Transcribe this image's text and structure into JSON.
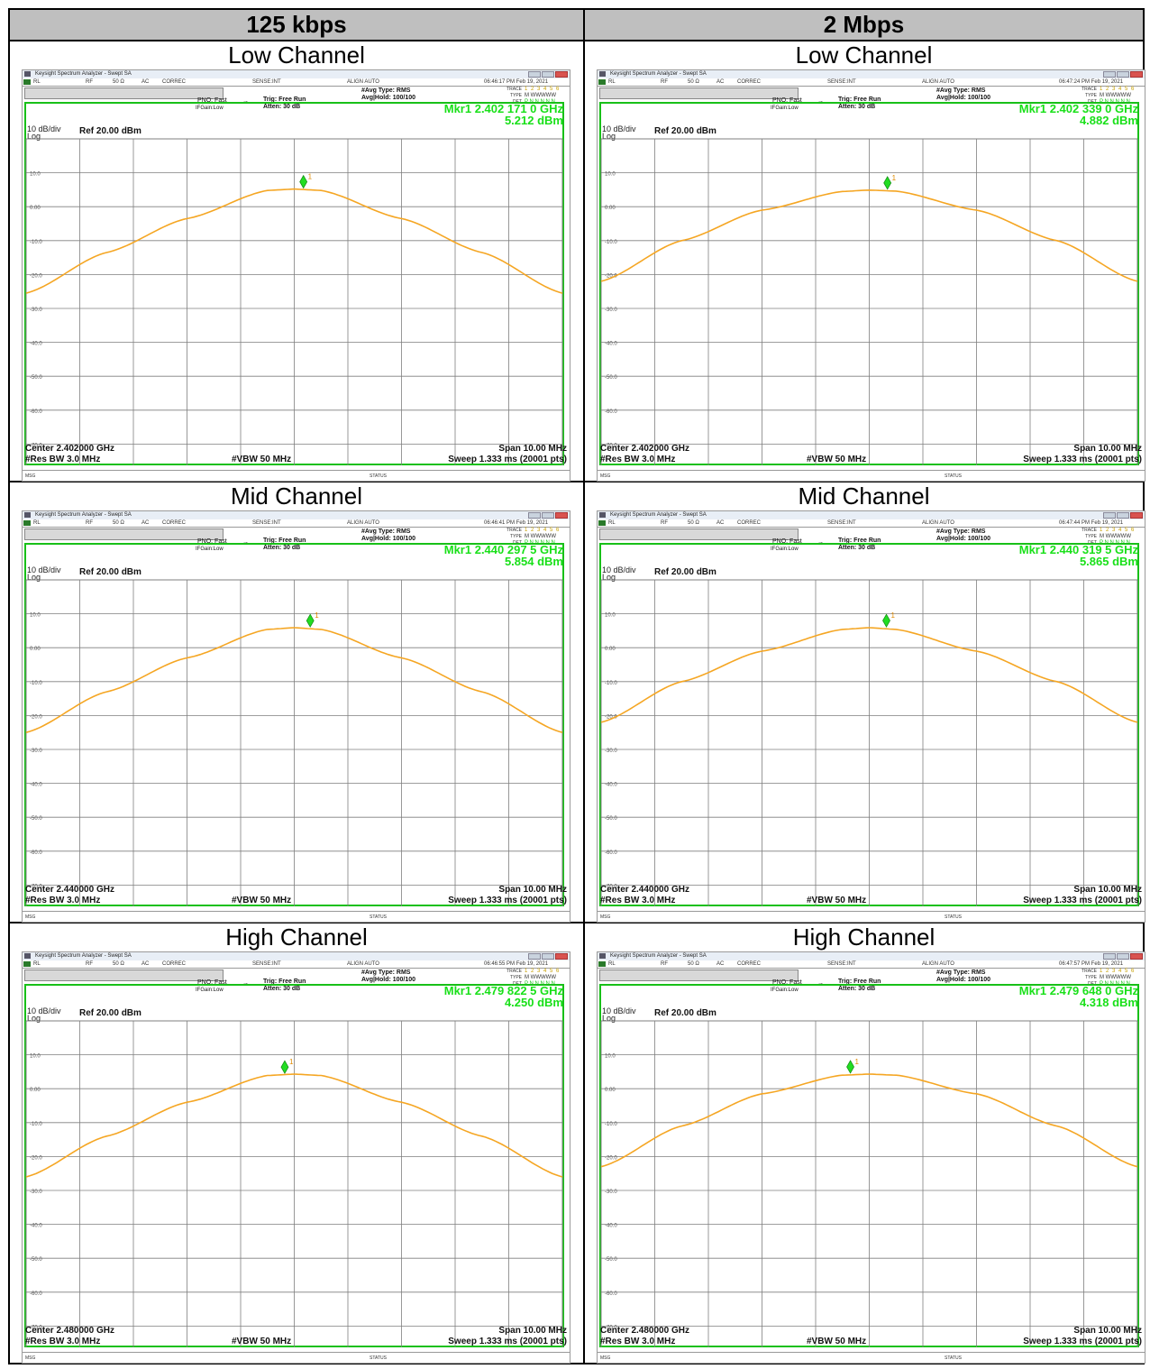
{
  "columns": [
    "125 kbps",
    "2 Mbps"
  ],
  "app_title": "Keysight Spectrum Analyzer - Swept SA",
  "status_row": {
    "rl": "RL",
    "rf": "RF",
    "ohm": "50 Ω",
    "ac": "AC",
    "correc": "CORREC",
    "sense": "SENSE:INT",
    "align": "ALIGN AUTO"
  },
  "settings": {
    "pno": "PNO: Fast",
    "ifgain": "IFGain:Low",
    "trig": "Trig: Free Run",
    "atten": "Atten: 30 dB",
    "avg_type": "#Avg Type: RMS",
    "avg_hold": "Avg|Hold: 100/100",
    "trace_lbl": "TRACE",
    "type_lbl": "TYPE",
    "det_lbl": "DET",
    "trace_val": "1 2 3 4 5 6",
    "type_val": "M WWWWW",
    "det_val": "P N N N N N"
  },
  "scale": {
    "div": "10 dB/div",
    "log": "Log",
    "ref": "Ref 20.00 dBm"
  },
  "bottom": {
    "res_bw": "#Res BW 3.0 MHz",
    "vbw": "#VBW 50 MHz",
    "span": "Span 10.00 MHz",
    "sweep": "Sweep  1.333 ms (20001 pts)",
    "msg": "MSG",
    "status": "STATUS"
  },
  "marker_label": "1",
  "colors": {
    "trace": "#f5a623",
    "marker": "#22dd22",
    "frame": "#18c018",
    "header_bg": "#bfbfbf"
  },
  "panels": [
    {
      "channel": "Low Channel",
      "time": "06:46:17 PM Feb 19, 2021",
      "mkr_freq": "Mkr1 2.402 171 0 GHz",
      "mkr_level": "5.212 dBm",
      "center": "Center 2.402000 GHz"
    },
    {
      "channel": "Low Channel",
      "time": "06:47:24 PM Feb 19, 2021",
      "mkr_freq": "Mkr1 2.402 339 0 GHz",
      "mkr_level": "4.882 dBm",
      "center": "Center 2.402000 GHz"
    },
    {
      "channel": "Mid Channel",
      "time": "06:46:41 PM Feb 19, 2021",
      "mkr_freq": "Mkr1 2.440 297 5 GHz",
      "mkr_level": "5.854 dBm",
      "center": "Center 2.440000 GHz"
    },
    {
      "channel": "Mid Channel",
      "time": "06:47:44 PM Feb 19, 2021",
      "mkr_freq": "Mkr1 2.440 319 5 GHz",
      "mkr_level": "5.865 dBm",
      "center": "Center 2.440000 GHz"
    },
    {
      "channel": "High Channel",
      "time": "06:46:55 PM Feb 19, 2021",
      "mkr_freq": "Mkr1 2.479 822 5 GHz",
      "mkr_level": "4.250 dBm",
      "center": "Center 2.480000 GHz"
    },
    {
      "channel": "High Channel",
      "time": "06:47:57 PM Feb 19, 2021",
      "mkr_freq": "Mkr1 2.479 648 0 GHz",
      "mkr_level": "4.318 dBm",
      "center": "Center 2.480000 GHz"
    }
  ],
  "chart_data": [
    {
      "type": "line",
      "title": "125 kbps Low Channel",
      "y_ticks": [
        "10.0",
        "0.00",
        "-10.0",
        "-20.0",
        "-30.0",
        "-40.0",
        "-50.0",
        "-60.0",
        "-70.0"
      ],
      "ylim": [
        -80,
        20
      ],
      "xlim": [
        2.397,
        2.407
      ],
      "x_unit": "GHz",
      "y_unit": "dBm",
      "grid": true,
      "center": 2.402,
      "span": 0.01,
      "marker": {
        "x": 2.402171,
        "y": 5.212
      },
      "series": [
        {
          "x": [
            2.397,
            2.3985,
            2.4,
            2.4015,
            2.402,
            2.4025,
            2.404,
            2.4055,
            2.407
          ],
          "y": [
            -25.5,
            -13.5,
            -3.5,
            4.8,
            5.2,
            4.8,
            -3.5,
            -13.5,
            -25.5
          ]
        }
      ]
    },
    {
      "type": "line",
      "title": "2 Mbps Low Channel",
      "y_ticks": [
        "10.0",
        "0.00",
        "-10.0",
        "-20.0",
        "-30.0",
        "-40.0",
        "-50.0",
        "-60.0",
        "-70.0"
      ],
      "ylim": [
        -80,
        20
      ],
      "xlim": [
        2.397,
        2.407
      ],
      "x_unit": "GHz",
      "y_unit": "dBm",
      "grid": true,
      "center": 2.402,
      "span": 0.01,
      "marker": {
        "x": 2.402339,
        "y": 4.882
      },
      "series": [
        {
          "x": [
            2.397,
            2.3985,
            2.4,
            2.4015,
            2.402,
            2.4025,
            2.404,
            2.4055,
            2.407
          ],
          "y": [
            -22.0,
            -10.0,
            -1.0,
            4.5,
            4.9,
            4.6,
            -1.0,
            -10.0,
            -22.0
          ]
        }
      ]
    },
    {
      "type": "line",
      "title": "125 kbps Mid Channel",
      "y_ticks": [
        "10.0",
        "0.00",
        "-10.0",
        "-20.0",
        "-30.0",
        "-40.0",
        "-50.0",
        "-60.0",
        "-70.0"
      ],
      "ylim": [
        -80,
        20
      ],
      "xlim": [
        2.435,
        2.445
      ],
      "x_unit": "GHz",
      "y_unit": "dBm",
      "grid": true,
      "center": 2.44,
      "span": 0.01,
      "marker": {
        "x": 2.4402975,
        "y": 5.854
      },
      "series": [
        {
          "x": [
            2.435,
            2.4365,
            2.438,
            2.4395,
            2.44,
            2.4405,
            2.442,
            2.4435,
            2.445
          ],
          "y": [
            -25.0,
            -13.0,
            -3.0,
            5.4,
            5.9,
            5.4,
            -3.0,
            -13.0,
            -25.0
          ]
        }
      ]
    },
    {
      "type": "line",
      "title": "2 Mbps Mid Channel",
      "y_ticks": [
        "10.0",
        "0.00",
        "-10.0",
        "-20.0",
        "-30.0",
        "-40.0",
        "-50.0",
        "-60.0",
        "-70.0"
      ],
      "ylim": [
        -80,
        20
      ],
      "xlim": [
        2.435,
        2.445
      ],
      "x_unit": "GHz",
      "y_unit": "dBm",
      "grid": true,
      "center": 2.44,
      "span": 0.01,
      "marker": {
        "x": 2.4403195,
        "y": 5.865
      },
      "series": [
        {
          "x": [
            2.435,
            2.4365,
            2.438,
            2.4395,
            2.44,
            2.4405,
            2.442,
            2.4435,
            2.445
          ],
          "y": [
            -22.0,
            -10.0,
            -1.0,
            5.4,
            5.9,
            5.4,
            -1.0,
            -10.0,
            -22.0
          ]
        }
      ]
    },
    {
      "type": "line",
      "title": "125 kbps High Channel",
      "y_ticks": [
        "10.0",
        "0.00",
        "-10.0",
        "-20.0",
        "-30.0",
        "-40.0",
        "-50.0",
        "-60.0",
        "-70.0"
      ],
      "ylim": [
        -80,
        20
      ],
      "xlim": [
        2.475,
        2.485
      ],
      "x_unit": "GHz",
      "y_unit": "dBm",
      "grid": true,
      "center": 2.48,
      "span": 0.01,
      "marker": {
        "x": 2.4798225,
        "y": 4.25
      },
      "series": [
        {
          "x": [
            2.475,
            2.4765,
            2.478,
            2.4795,
            2.48,
            2.4805,
            2.482,
            2.4835,
            2.485
          ],
          "y": [
            -26.0,
            -14.0,
            -4.0,
            3.9,
            4.3,
            3.9,
            -4.0,
            -14.0,
            -26.0
          ]
        }
      ]
    },
    {
      "type": "line",
      "title": "2 Mbps High Channel",
      "y_ticks": [
        "10.0",
        "0.00",
        "-10.0",
        "-20.0",
        "-30.0",
        "-40.0",
        "-50.0",
        "-60.0",
        "-70.0"
      ],
      "ylim": [
        -80,
        20
      ],
      "xlim": [
        2.475,
        2.485
      ],
      "x_unit": "GHz",
      "y_unit": "dBm",
      "grid": true,
      "center": 2.48,
      "span": 0.01,
      "marker": {
        "x": 2.479648,
        "y": 4.318
      },
      "series": [
        {
          "x": [
            2.475,
            2.4765,
            2.478,
            2.4795,
            2.48,
            2.4805,
            2.482,
            2.4835,
            2.485
          ],
          "y": [
            -23.0,
            -11.0,
            -1.5,
            4.0,
            4.3,
            4.0,
            -1.5,
            -11.0,
            -23.0
          ]
        }
      ]
    }
  ]
}
